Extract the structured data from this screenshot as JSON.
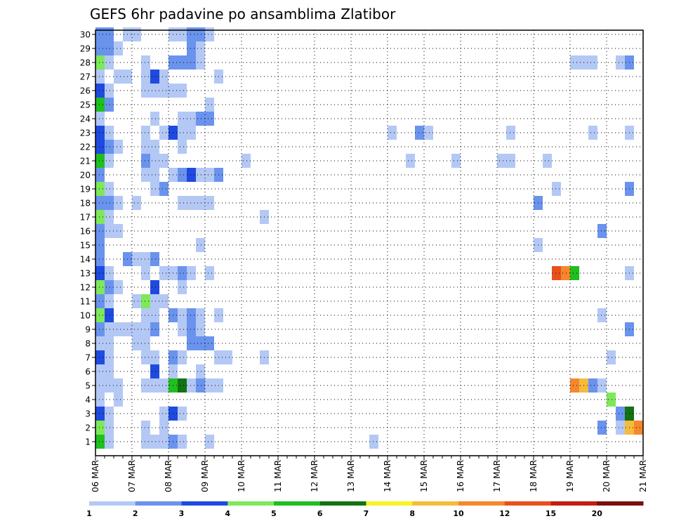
{
  "chart_data": {
    "type": "heatmap",
    "title": "GEFS 6hr padavine po ansamblima Zlatibor",
    "y_ticks": [
      "1",
      "2",
      "3",
      "4",
      "5",
      "6",
      "7",
      "8",
      "9",
      "10",
      "11",
      "12",
      "13",
      "14",
      "15",
      "16",
      "17",
      "18",
      "19",
      "20",
      "21",
      "22",
      "23",
      "24",
      "25",
      "26",
      "27",
      "28",
      "29",
      "30"
    ],
    "x_ticks": [
      "06 MAR",
      "07 MAR",
      "08 MAR",
      "09 MAR",
      "10 MAR",
      "11 MAR",
      "12 MAR",
      "13 MAR",
      "14 MAR",
      "15 MAR",
      "16 MAR",
      "17 MAR",
      "18 MAR",
      "19 MAR",
      "20 MAR",
      "21 MAR"
    ],
    "x_range": [
      "06 MAR 00Z",
      "21 MAR 00Z"
    ],
    "x_step": "6hr",
    "y_range": [
      1,
      30
    ],
    "grid": true,
    "legend_placement": "bottom",
    "legend_labels": [
      "1",
      "2",
      "3",
      "4",
      "5",
      "6",
      "7",
      "8",
      "10",
      "12",
      "15",
      "20"
    ],
    "legend_colors": [
      "#b4c8f5",
      "#6a93ee",
      "#1f4ae0",
      "#7ee85a",
      "#1fbf1f",
      "#127312",
      "#f5f523",
      "#f5bb3c",
      "#f5872d",
      "#e8501e",
      "#c41e10",
      "#7a1010"
    ],
    "cell_value_note": "cells list [member, 6hr-step index from 06 MAR 00Z, class index 0..11 into legend_colors]",
    "cells": [
      [
        30,
        0,
        1
      ],
      [
        30,
        1,
        1
      ],
      [
        30,
        3,
        0
      ],
      [
        30,
        4,
        0
      ],
      [
        30,
        8,
        0
      ],
      [
        30,
        9,
        0
      ],
      [
        30,
        10,
        1
      ],
      [
        30,
        11,
        1
      ],
      [
        30,
        12,
        0
      ],
      [
        29,
        0,
        1
      ],
      [
        29,
        1,
        1
      ],
      [
        29,
        2,
        0
      ],
      [
        29,
        10,
        1
      ],
      [
        29,
        11,
        0
      ],
      [
        28,
        0,
        3
      ],
      [
        28,
        1,
        0
      ],
      [
        28,
        5,
        0
      ],
      [
        28,
        8,
        1
      ],
      [
        28,
        9,
        1
      ],
      [
        28,
        10,
        1
      ],
      [
        28,
        11,
        0
      ],
      [
        28,
        52,
        0
      ],
      [
        28,
        53,
        0
      ],
      [
        28,
        54,
        0
      ],
      [
        28,
        57,
        0
      ],
      [
        28,
        58,
        1
      ],
      [
        27,
        0,
        0
      ],
      [
        27,
        2,
        0
      ],
      [
        27,
        3,
        0
      ],
      [
        27,
        5,
        0
      ],
      [
        27,
        6,
        2
      ],
      [
        27,
        7,
        0
      ],
      [
        27,
        13,
        0
      ],
      [
        26,
        0,
        2
      ],
      [
        26,
        1,
        0
      ],
      [
        26,
        5,
        0
      ],
      [
        26,
        6,
        0
      ],
      [
        26,
        7,
        0
      ],
      [
        26,
        8,
        0
      ],
      [
        26,
        9,
        0
      ],
      [
        25,
        0,
        4
      ],
      [
        25,
        1,
        1
      ],
      [
        25,
        12,
        0
      ],
      [
        24,
        0,
        0
      ],
      [
        24,
        6,
        0
      ],
      [
        24,
        9,
        0
      ],
      [
        24,
        10,
        0
      ],
      [
        24,
        11,
        1
      ],
      [
        24,
        12,
        1
      ],
      [
        23,
        0,
        2
      ],
      [
        23,
        1,
        0
      ],
      [
        23,
        5,
        0
      ],
      [
        23,
        7,
        0
      ],
      [
        23,
        8,
        2
      ],
      [
        23,
        9,
        0
      ],
      [
        23,
        10,
        0
      ],
      [
        23,
        32,
        0
      ],
      [
        23,
        35,
        1
      ],
      [
        23,
        36,
        0
      ],
      [
        23,
        45,
        0
      ],
      [
        23,
        54,
        0
      ],
      [
        23,
        58,
        0
      ],
      [
        22,
        0,
        2
      ],
      [
        22,
        1,
        1
      ],
      [
        22,
        2,
        0
      ],
      [
        22,
        5,
        0
      ],
      [
        22,
        6,
        0
      ],
      [
        22,
        9,
        0
      ],
      [
        21,
        0,
        4
      ],
      [
        21,
        1,
        0
      ],
      [
        21,
        5,
        1
      ],
      [
        21,
        6,
        0
      ],
      [
        21,
        7,
        0
      ],
      [
        21,
        16,
        0
      ],
      [
        21,
        34,
        0
      ],
      [
        21,
        39,
        0
      ],
      [
        21,
        44,
        0
      ],
      [
        21,
        45,
        0
      ],
      [
        21,
        49,
        0
      ],
      [
        20,
        0,
        1
      ],
      [
        20,
        5,
        0
      ],
      [
        20,
        6,
        0
      ],
      [
        20,
        8,
        0
      ],
      [
        20,
        9,
        1
      ],
      [
        20,
        10,
        2
      ],
      [
        20,
        11,
        0
      ],
      [
        20,
        12,
        0
      ],
      [
        20,
        13,
        1
      ],
      [
        19,
        0,
        3
      ],
      [
        19,
        1,
        0
      ],
      [
        19,
        6,
        0
      ],
      [
        19,
        7,
        1
      ],
      [
        19,
        50,
        0
      ],
      [
        19,
        58,
        1
      ],
      [
        18,
        0,
        1
      ],
      [
        18,
        1,
        1
      ],
      [
        18,
        2,
        0
      ],
      [
        18,
        4,
        0
      ],
      [
        18,
        9,
        0
      ],
      [
        18,
        10,
        0
      ],
      [
        18,
        11,
        0
      ],
      [
        18,
        12,
        0
      ],
      [
        18,
        48,
        1
      ],
      [
        17,
        0,
        3
      ],
      [
        17,
        1,
        0
      ],
      [
        17,
        18,
        0
      ],
      [
        16,
        0,
        1
      ],
      [
        16,
        1,
        0
      ],
      [
        16,
        2,
        0
      ],
      [
        16,
        55,
        1
      ],
      [
        15,
        0,
        1
      ],
      [
        15,
        11,
        0
      ],
      [
        15,
        48,
        0
      ],
      [
        14,
        0,
        1
      ],
      [
        14,
        3,
        1
      ],
      [
        14,
        4,
        0
      ],
      [
        14,
        5,
        0
      ],
      [
        14,
        6,
        1
      ],
      [
        13,
        0,
        2
      ],
      [
        13,
        1,
        0
      ],
      [
        13,
        5,
        0
      ],
      [
        13,
        7,
        0
      ],
      [
        13,
        8,
        0
      ],
      [
        13,
        9,
        1
      ],
      [
        13,
        10,
        0
      ],
      [
        13,
        12,
        0
      ],
      [
        13,
        50,
        9
      ],
      [
        13,
        51,
        8
      ],
      [
        13,
        52,
        4
      ],
      [
        13,
        58,
        0
      ],
      [
        12,
        0,
        3
      ],
      [
        12,
        1,
        1
      ],
      [
        12,
        2,
        0
      ],
      [
        12,
        6,
        2
      ],
      [
        12,
        9,
        0
      ],
      [
        11,
        0,
        1
      ],
      [
        11,
        1,
        0
      ],
      [
        11,
        4,
        0
      ],
      [
        11,
        5,
        3
      ],
      [
        11,
        6,
        0
      ],
      [
        11,
        7,
        0
      ],
      [
        10,
        0,
        3
      ],
      [
        10,
        1,
        2
      ],
      [
        10,
        5,
        0
      ],
      [
        10,
        6,
        0
      ],
      [
        10,
        8,
        1
      ],
      [
        10,
        9,
        0
      ],
      [
        10,
        10,
        1
      ],
      [
        10,
        11,
        0
      ],
      [
        10,
        13,
        0
      ],
      [
        10,
        55,
        0
      ],
      [
        9,
        0,
        1
      ],
      [
        9,
        1,
        0
      ],
      [
        9,
        2,
        0
      ],
      [
        9,
        3,
        0
      ],
      [
        9,
        4,
        0
      ],
      [
        9,
        5,
        0
      ],
      [
        9,
        6,
        1
      ],
      [
        9,
        9,
        0
      ],
      [
        9,
        10,
        1
      ],
      [
        9,
        11,
        0
      ],
      [
        9,
        58,
        1
      ],
      [
        8,
        0,
        0
      ],
      [
        8,
        1,
        0
      ],
      [
        8,
        4,
        0
      ],
      [
        8,
        5,
        0
      ],
      [
        8,
        10,
        1
      ],
      [
        8,
        11,
        1
      ],
      [
        8,
        12,
        1
      ],
      [
        7,
        0,
        2
      ],
      [
        7,
        1,
        0
      ],
      [
        7,
        5,
        0
      ],
      [
        7,
        6,
        0
      ],
      [
        7,
        8,
        1
      ],
      [
        7,
        9,
        0
      ],
      [
        7,
        13,
        0
      ],
      [
        7,
        14,
        0
      ],
      [
        7,
        18,
        0
      ],
      [
        7,
        56,
        0
      ],
      [
        6,
        0,
        0
      ],
      [
        6,
        1,
        0
      ],
      [
        6,
        6,
        2
      ],
      [
        6,
        8,
        0
      ],
      [
        6,
        11,
        0
      ],
      [
        5,
        0,
        0
      ],
      [
        5,
        1,
        0
      ],
      [
        5,
        2,
        0
      ],
      [
        5,
        5,
        0
      ],
      [
        5,
        6,
        0
      ],
      [
        5,
        7,
        0
      ],
      [
        5,
        8,
        4
      ],
      [
        5,
        9,
        5
      ],
      [
        5,
        10,
        0
      ],
      [
        5,
        11,
        1
      ],
      [
        5,
        12,
        0
      ],
      [
        5,
        13,
        0
      ],
      [
        5,
        52,
        8
      ],
      [
        5,
        53,
        7
      ],
      [
        5,
        54,
        1
      ],
      [
        5,
        55,
        0
      ],
      [
        4,
        0,
        0
      ],
      [
        4,
        2,
        0
      ],
      [
        4,
        56,
        3
      ],
      [
        3,
        0,
        2
      ],
      [
        3,
        1,
        0
      ],
      [
        3,
        7,
        0
      ],
      [
        3,
        8,
        2
      ],
      [
        3,
        9,
        0
      ],
      [
        3,
        57,
        1
      ],
      [
        3,
        58,
        5
      ],
      [
        2,
        0,
        3
      ],
      [
        2,
        1,
        0
      ],
      [
        2,
        5,
        0
      ],
      [
        2,
        7,
        0
      ],
      [
        2,
        55,
        1
      ],
      [
        2,
        57,
        0
      ],
      [
        2,
        58,
        7
      ],
      [
        2,
        59,
        8
      ],
      [
        1,
        0,
        4
      ],
      [
        1,
        1,
        0
      ],
      [
        1,
        5,
        0
      ],
      [
        1,
        6,
        0
      ],
      [
        1,
        7,
        0
      ],
      [
        1,
        8,
        1
      ],
      [
        1,
        9,
        0
      ],
      [
        1,
        12,
        0
      ],
      [
        1,
        30,
        0
      ]
    ]
  }
}
